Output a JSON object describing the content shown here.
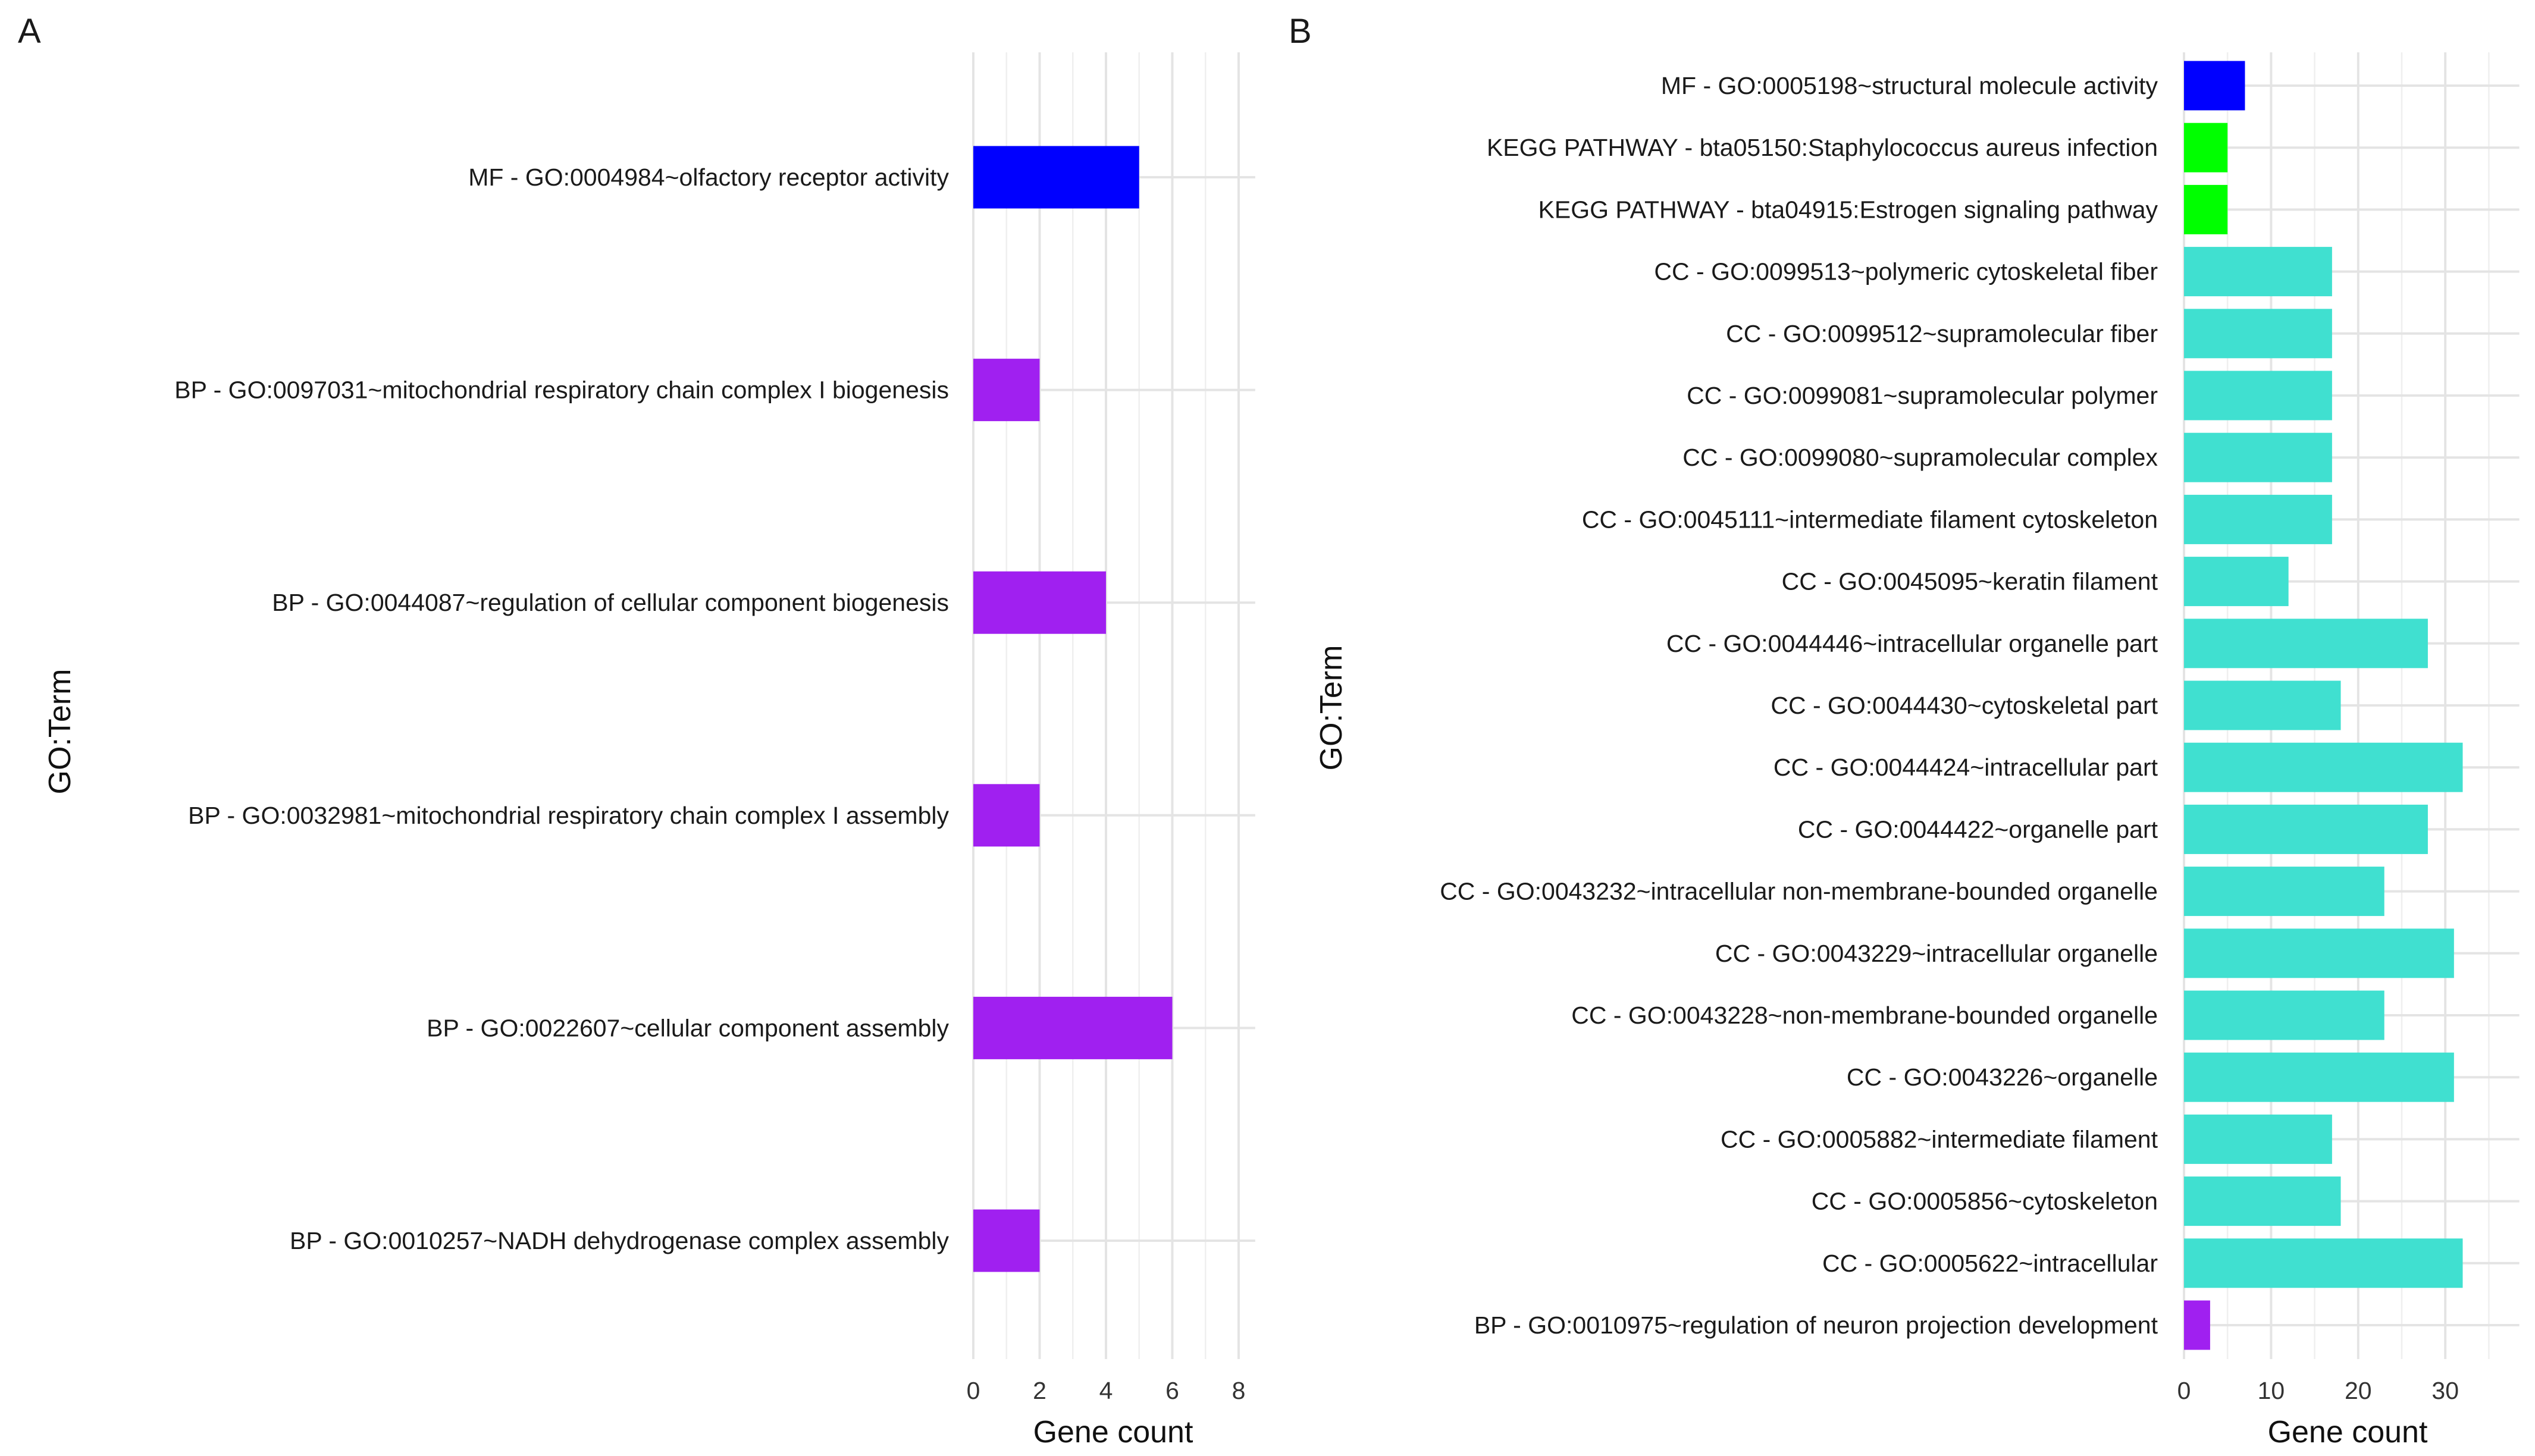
{
  "figure": {
    "panels": [
      "A",
      "B"
    ]
  },
  "colors": {
    "MF": "#0000ff",
    "BP": "#a020f0",
    "KEGG": "#00ff00",
    "CC": "#40e0d0"
  },
  "chart_data": [
    {
      "panel": "A",
      "type": "bar",
      "orientation": "horizontal",
      "xlabel": "Gene count",
      "ylabel": "GO:Term",
      "xlim": [
        0,
        8.5
      ],
      "xticks": [
        0,
        2,
        4,
        6,
        8
      ],
      "tick_labels": [
        "0",
        "2",
        "4",
        "6",
        "8"
      ],
      "categories": [
        "MF -  GO:0004984~olfactory receptor activity",
        "BP -  GO:0097031~mitochondrial respiratory chain complex I biogenesis",
        "BP -  GO:0044087~regulation of cellular component biogenesis",
        "BP -  GO:0032981~mitochondrial respiratory chain complex I assembly",
        "BP -  GO:0022607~cellular component assembly",
        "BP -  GO:0010257~NADH dehydrogenase complex assembly"
      ],
      "groups": [
        "MF",
        "BP",
        "BP",
        "BP",
        "BP",
        "BP"
      ],
      "values": [
        5,
        2,
        4,
        2,
        6,
        2
      ]
    },
    {
      "panel": "B",
      "type": "bar",
      "orientation": "horizontal",
      "xlabel": "Gene count",
      "ylabel": "GO:Term",
      "xlim": [
        0,
        38.5
      ],
      "xticks": [
        0,
        10,
        20,
        30
      ],
      "tick_labels": [
        "0",
        "10",
        "20",
        "30"
      ],
      "categories": [
        "MF -  GO:0005198~structural molecule activity",
        "KEGG PATHWAY -  bta05150:Staphylococcus aureus infection",
        "KEGG PATHWAY -  bta04915:Estrogen signaling pathway",
        "CC -  GO:0099513~polymeric cytoskeletal fiber",
        "CC -  GO:0099512~supramolecular fiber",
        "CC -  GO:0099081~supramolecular polymer",
        "CC -  GO:0099080~supramolecular complex",
        "CC -  GO:0045111~intermediate filament cytoskeleton",
        "CC -  GO:0045095~keratin filament",
        "CC -  GO:0044446~intracellular organelle part",
        "CC -  GO:0044430~cytoskeletal part",
        "CC -  GO:0044424~intracellular part",
        "CC -  GO:0044422~organelle part",
        "CC -  GO:0043232~intracellular non-membrane-bounded organelle",
        "CC -  GO:0043229~intracellular organelle",
        "CC -  GO:0043228~non-membrane-bounded organelle",
        "CC -  GO:0043226~organelle",
        "CC -  GO:0005882~intermediate filament",
        "CC -  GO:0005856~cytoskeleton",
        "CC -  GO:0005622~intracellular",
        "BP -  GO:0010975~regulation of neuron projection development"
      ],
      "groups": [
        "MF",
        "KEGG",
        "KEGG",
        "CC",
        "CC",
        "CC",
        "CC",
        "CC",
        "CC",
        "CC",
        "CC",
        "CC",
        "CC",
        "CC",
        "CC",
        "CC",
        "CC",
        "CC",
        "CC",
        "CC",
        "BP"
      ],
      "values": [
        7,
        5,
        5,
        17,
        17,
        17,
        17,
        17,
        12,
        28,
        18,
        32,
        28,
        23,
        31,
        23,
        31,
        17,
        18,
        32,
        3
      ]
    }
  ]
}
